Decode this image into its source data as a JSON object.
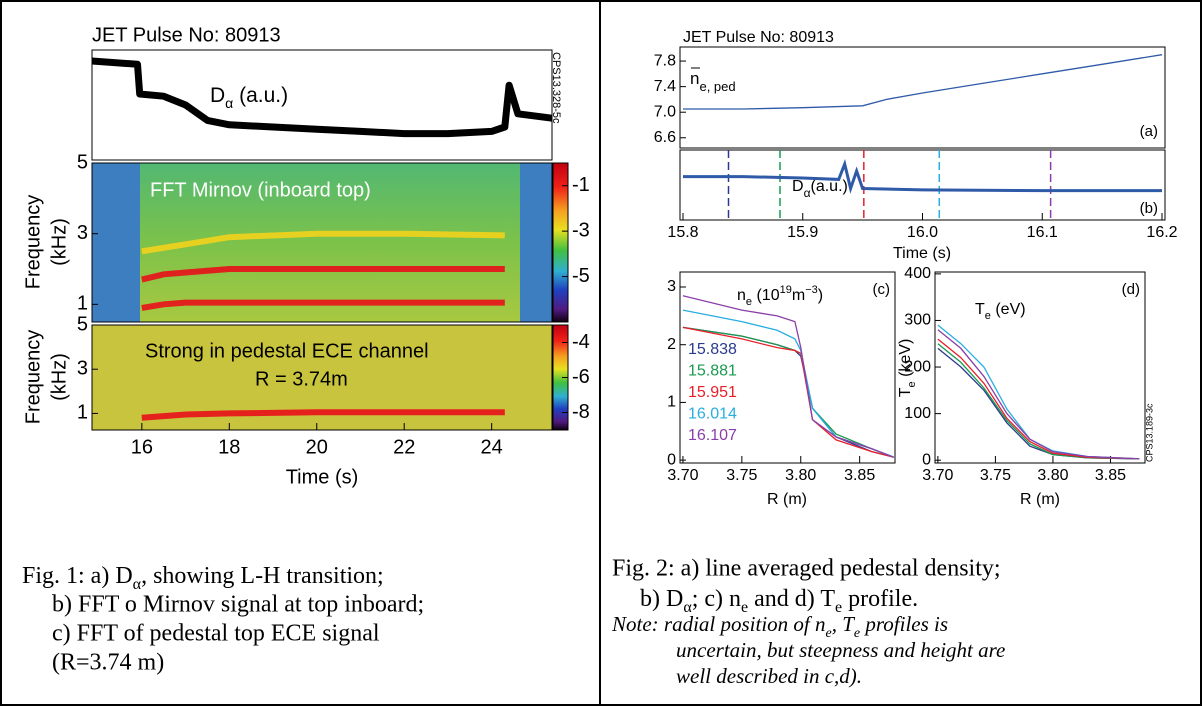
{
  "chart_data": [
    {
      "type": "line",
      "title": "JET Pulse No: 80913",
      "code": "CPS13.328-5c",
      "label": "D",
      "label_sub": "α",
      "label_unit": " (a.u.)",
      "color": "#000000",
      "xlim": [
        14.86,
        25.38
      ],
      "ylim": [
        0,
        1
      ],
      "x": [
        14.86,
        15.9,
        15.95,
        16.5,
        17,
        17.5,
        18,
        19,
        20,
        21,
        22,
        23,
        24,
        24.3,
        24.4,
        24.6,
        25.38
      ],
      "values": [
        0.9,
        0.87,
        0.6,
        0.58,
        0.5,
        0.36,
        0.32,
        0.3,
        0.28,
        0.26,
        0.24,
        0.24,
        0.26,
        0.3,
        0.68,
        0.42,
        0.38
      ]
    },
    {
      "type": "spectrogram",
      "title": "FFT Mirnov (inboard top)",
      "y_label": "Frequency",
      "y_unit": "(kHz)",
      "xlim": [
        14.86,
        25.38
      ],
      "ylim": [
        0.5,
        5
      ],
      "yticks": [
        1,
        3,
        5
      ],
      "colorbar": {
        "lim": [
          -7,
          0
        ],
        "ticks": [
          -1,
          -3,
          -5
        ]
      },
      "modes": [
        {
          "color": "#e8101a",
          "x": [
            16,
            16.5,
            17,
            18,
            20,
            22,
            24.3
          ],
          "values": [
            0.9,
            1.0,
            1.05,
            1.05,
            1.05,
            1.05,
            1.05
          ]
        },
        {
          "color": "#e8101a",
          "x": [
            16,
            16.5,
            17,
            18,
            20,
            22,
            24.3
          ],
          "values": [
            1.7,
            1.85,
            1.9,
            2.0,
            2.0,
            2.0,
            2.0
          ]
        },
        {
          "color": "#f2d21c",
          "x": [
            16,
            16.5,
            17,
            18,
            20,
            22,
            24.3
          ],
          "values": [
            2.5,
            2.6,
            2.7,
            2.9,
            3.0,
            3.0,
            2.95
          ]
        }
      ]
    },
    {
      "type": "spectrogram",
      "title": "Strong in pedestal ECE channel",
      "subtitle": "R = 3.74m",
      "y_label": "Frequency",
      "y_unit": "(kHz)",
      "x_label": "Time (s)",
      "xlim": [
        14.86,
        25.38
      ],
      "xticks": [
        16,
        18,
        20,
        22,
        24
      ],
      "ylim": [
        0.25,
        5
      ],
      "yticks": [
        1,
        3,
        5
      ],
      "colorbar": {
        "lim": [
          -9,
          -3
        ],
        "ticks": [
          -4,
          -6,
          -8
        ]
      },
      "modes": [
        {
          "color": "#e8101a",
          "x": [
            16,
            17,
            18,
            20,
            22,
            24.3
          ],
          "values": [
            0.8,
            0.95,
            1.0,
            1.05,
            1.05,
            1.05
          ]
        }
      ]
    },
    {
      "type": "line",
      "title": "JET Pulse No: 80913",
      "label": "n",
      "label_sub": "e, ped",
      "panel_label": "(a)",
      "xlim": [
        15.7975,
        16.2025
      ],
      "ylim": [
        6.44,
        8.02
      ],
      "yticks": [
        6.6,
        {
          "value": 7,
          "label": "7.0"
        },
        7.4,
        7.8
      ],
      "series": [
        {
          "color": "#2f5aa8",
          "x": [
            15.8,
            15.85,
            15.9,
            15.95,
            15.97,
            16.0,
            16.05,
            16.1,
            16.15,
            16.2
          ],
          "values": [
            7.05,
            7.05,
            7.07,
            7.1,
            7.2,
            7.3,
            7.45,
            7.6,
            7.75,
            7.9
          ]
        }
      ]
    },
    {
      "type": "line",
      "label": "D",
      "label_sub": "α",
      "label_unit": "(a.u.)",
      "panel_label": "(b)",
      "x_label": "Time (s)",
      "xlim": [
        15.7975,
        16.2025
      ],
      "ylim": [
        0,
        1
      ],
      "xticks": [
        15.8,
        15.9,
        {
          "value": 16,
          "label": "16.0"
        },
        16.1,
        16.2
      ],
      "markers": [
        {
          "x": 15.838,
          "color": "#2b3a8f"
        },
        {
          "x": 15.881,
          "color": "#1a9a50"
        },
        {
          "x": 15.951,
          "color": "#e8202a"
        },
        {
          "x": 16.014,
          "color": "#29aee0"
        },
        {
          "x": 16.107,
          "color": "#8b3fa8"
        }
      ],
      "series": [
        {
          "color": "#2f5aa8",
          "x": [
            15.8,
            15.85,
            15.9,
            15.93,
            15.935,
            15.94,
            15.945,
            15.95,
            16.0,
            16.1,
            16.2
          ],
          "values": [
            0.62,
            0.62,
            0.6,
            0.58,
            0.8,
            0.45,
            0.7,
            0.45,
            0.43,
            0.42,
            0.42
          ]
        }
      ]
    },
    {
      "type": "line",
      "label": "n",
      "label_sub": "e",
      "label_unit": " (10",
      "label_exp": "19",
      "label_unit2": "m",
      "label_exp2": "−3",
      "label_end": ")",
      "panel_label": "(c)",
      "x_label": "R (m)",
      "xlim": [
        3.6975,
        3.88
      ],
      "ylim": [
        -0.05,
        3.26
      ],
      "xticks": [
        {
          "value": 3.7,
          "label": "3.70"
        },
        3.75,
        {
          "value": 3.8,
          "label": "3.80"
        },
        3.85
      ],
      "yticks": [
        0,
        1,
        2,
        3
      ],
      "series": [
        {
          "name": "15.838",
          "color": "#2b3a8f",
          "x": [
            3.7,
            3.75,
            3.78,
            3.795,
            3.8,
            3.81,
            3.83,
            3.86,
            3.879
          ],
          "values": [
            2.3,
            2.15,
            2.0,
            1.9,
            1.8,
            0.9,
            0.4,
            0.15,
            0.05
          ]
        },
        {
          "name": "15.881",
          "color": "#1a9a50",
          "x": [
            3.7,
            3.75,
            3.78,
            3.795,
            3.8,
            3.81,
            3.83,
            3.86,
            3.879
          ],
          "values": [
            2.3,
            2.15,
            2.0,
            1.9,
            1.85,
            0.9,
            0.45,
            0.2,
            0.05
          ]
        },
        {
          "name": "15.951",
          "color": "#e8202a",
          "x": [
            3.7,
            3.75,
            3.78,
            3.795,
            3.8,
            3.81,
            3.83,
            3.86,
            3.879
          ],
          "values": [
            2.3,
            2.1,
            1.95,
            1.9,
            1.85,
            0.7,
            0.35,
            0.15,
            0.05
          ]
        },
        {
          "name": "16.014",
          "color": "#29aee0",
          "x": [
            3.7,
            3.75,
            3.78,
            3.795,
            3.8,
            3.81,
            3.83,
            3.86,
            3.879
          ],
          "values": [
            2.6,
            2.4,
            2.25,
            2.1,
            1.9,
            0.9,
            0.4,
            0.2,
            0.05
          ]
        },
        {
          "name": "16.107",
          "color": "#8b3fa8",
          "x": [
            3.7,
            3.75,
            3.78,
            3.795,
            3.8,
            3.81,
            3.83,
            3.86,
            3.879
          ],
          "values": [
            2.85,
            2.6,
            2.5,
            2.4,
            1.95,
            0.7,
            0.4,
            0.2,
            0.05
          ]
        }
      ]
    },
    {
      "type": "line",
      "label": "T",
      "label_sub": "e",
      "label_unit": " (eV)",
      "y_label": "T",
      "y_label_sub": "e",
      "y_label_unit": " (keV)",
      "panel_label": "(d)",
      "x_label": "R (m)",
      "code": "CPS13.189-3c",
      "xlim": [
        3.6975,
        3.88
      ],
      "ylim": [
        -6,
        404
      ],
      "xticks": [
        {
          "value": 3.7,
          "label": "3.70"
        },
        3.75,
        {
          "value": 3.8,
          "label": "3.80"
        },
        3.85
      ],
      "yticks": [
        0,
        100,
        200,
        300,
        400
      ],
      "series": [
        {
          "color": "#2b3a8f",
          "x": [
            3.7,
            3.72,
            3.74,
            3.76,
            3.78,
            3.8,
            3.83,
            3.875
          ],
          "values": [
            240,
            200,
            150,
            80,
            30,
            12,
            5,
            3
          ]
        },
        {
          "color": "#1a9a50",
          "x": [
            3.7,
            3.72,
            3.74,
            3.76,
            3.78,
            3.8,
            3.83,
            3.875
          ],
          "values": [
            250,
            210,
            155,
            85,
            35,
            12,
            5,
            3
          ]
        },
        {
          "color": "#e8202a",
          "x": [
            3.7,
            3.72,
            3.74,
            3.76,
            3.78,
            3.8,
            3.83,
            3.875
          ],
          "values": [
            260,
            220,
            165,
            90,
            40,
            15,
            6,
            3
          ]
        },
        {
          "color": "#29aee0",
          "x": [
            3.7,
            3.72,
            3.74,
            3.76,
            3.78,
            3.8,
            3.83,
            3.875
          ],
          "values": [
            290,
            250,
            200,
            110,
            45,
            20,
            8,
            3
          ]
        },
        {
          "color": "#8b3fa8",
          "x": [
            3.7,
            3.72,
            3.74,
            3.76,
            3.78,
            3.8,
            3.83,
            3.875
          ],
          "values": [
            280,
            240,
            180,
            100,
            45,
            18,
            8,
            3
          ]
        }
      ]
    }
  ],
  "fig1_caption": {
    "line1": [
      "Fig. 1: a) D",
      "α",
      ", showing L-H transition;"
    ],
    "line2": "b) FFT o Mirnov signal at top inboard;",
    "line3": "c) FFT of pedestal top ECE signal",
    "line4": "(R=3.74 m)"
  },
  "fig2_caption": {
    "line1": "Fig. 2: a) line averaged pedestal density;",
    "line2": [
      "b) D",
      "α",
      "; c) n",
      "e",
      " and d) T",
      "e",
      " profile."
    ],
    "note1": [
      "Note: radial position of n",
      "e",
      ", T",
      "e",
      " profiles is"
    ],
    "note2": "uncertain, but steepness and height are",
    "note3": "well described in c,d)."
  }
}
